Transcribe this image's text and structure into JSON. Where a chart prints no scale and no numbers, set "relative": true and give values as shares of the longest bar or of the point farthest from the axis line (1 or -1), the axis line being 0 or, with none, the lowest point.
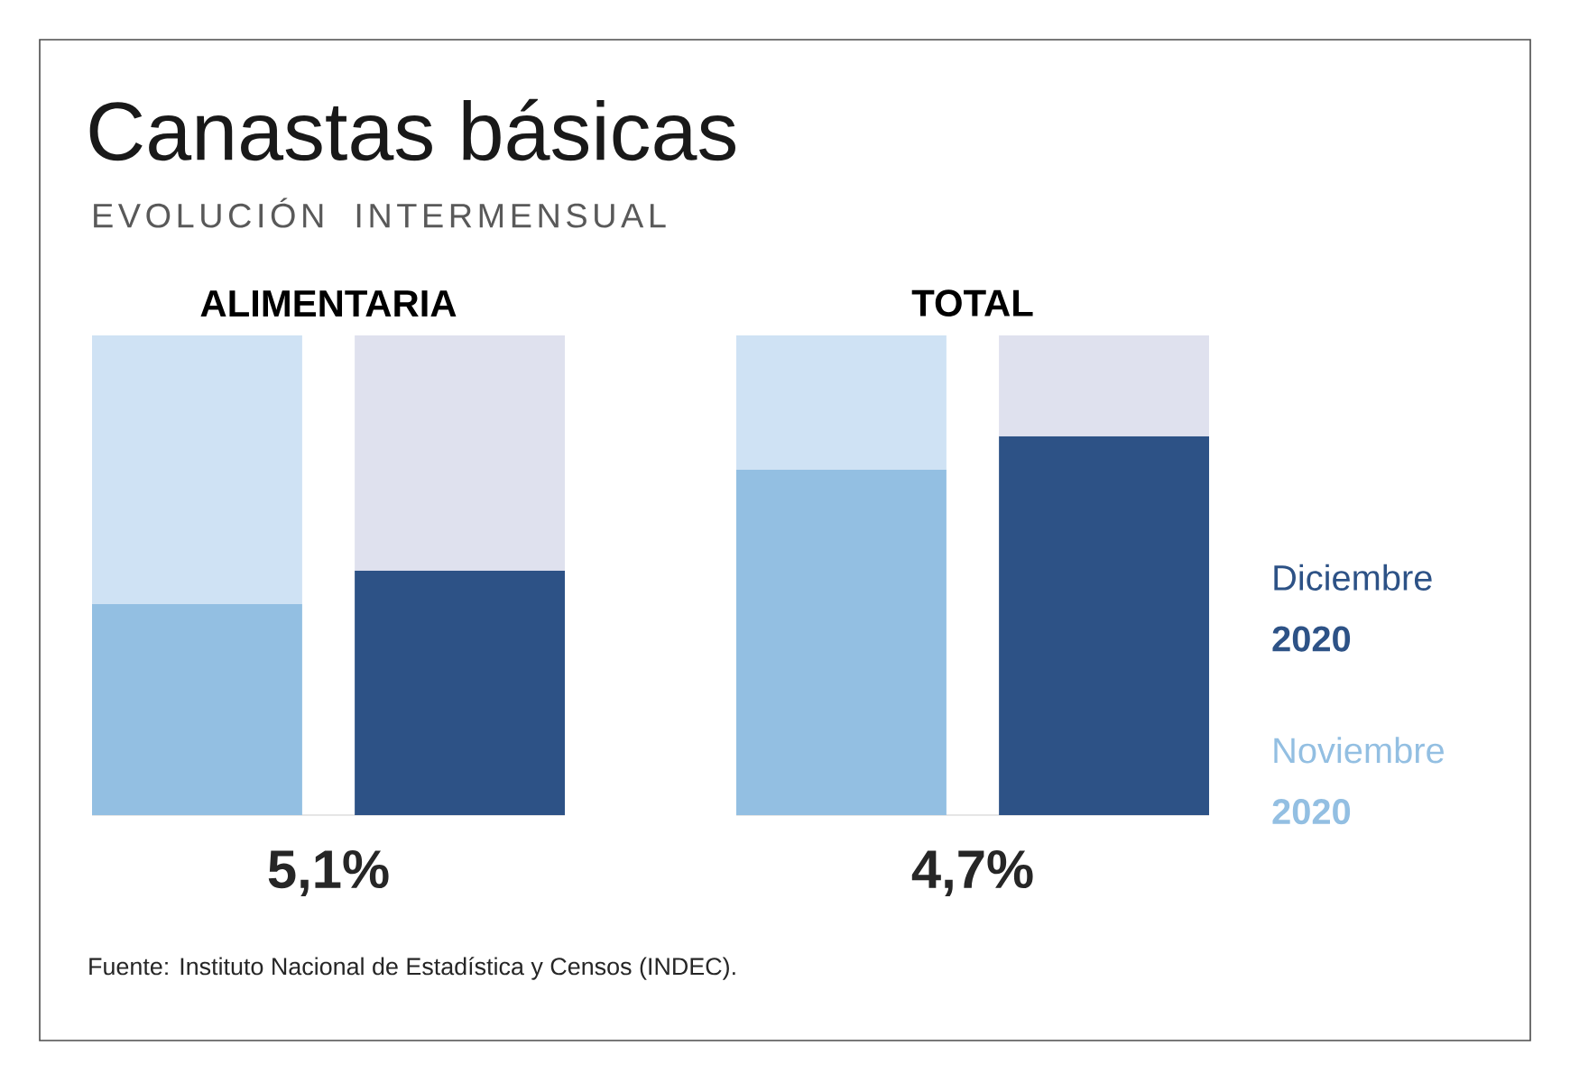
{
  "chart_data": [
    {
      "type": "other",
      "title": "Canastas básicas",
      "subtitle": "EVOLUCIÓN INTERMENSUAL",
      "annotations": [
        "Fuente: Instituto Nacional de Estadística y Censos (INDEC)."
      ]
    },
    {
      "type": "bar",
      "title": "ALIMENTARIA",
      "relative": true,
      "stacked": true,
      "categories": [
        null,
        null
      ],
      "series": [
        {
          "color": "#93bfe2",
          "values": [
            0.44,
            null
          ]
        },
        {
          "color": "#2d5286",
          "values": [
            null,
            0.51
          ]
        },
        {
          "colors": [
            "#cfe2f4",
            "#dfe1ee"
          ],
          "values": [
            0.56,
            0.49
          ]
        }
      ],
      "annotations": [
        "5,1%"
      ]
    },
    {
      "type": "bar",
      "title": "TOTAL",
      "relative": true,
      "stacked": true,
      "categories": [
        null,
        null
      ],
      "legend": "right",
      "series": [
        {
          "name": "Noviembre **2020**",
          "color": "#93bfe2",
          "values": [
            0.72,
            null
          ]
        },
        {
          "name": "Diciembre **2020**",
          "color": "#2d5286",
          "values": [
            null,
            0.79
          ]
        },
        {
          "colors": [
            "#cfe2f4",
            "#dfe1ee"
          ],
          "values": [
            0.28,
            0.21
          ]
        }
      ],
      "annotations": [
        "4,7%"
      ]
    }
  ]
}
